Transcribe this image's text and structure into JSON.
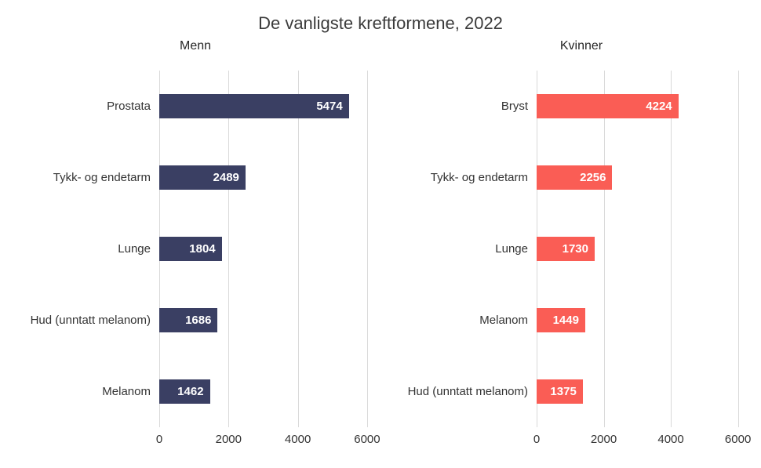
{
  "title": "De vanligste kreftformene, 2022",
  "colors": {
    "menn_bar": "#3a3f63",
    "kvinner_bar": "#fa5d55",
    "gridline": "#d9d9d9",
    "title_text": "#3b3b3b",
    "label_text": "#333333",
    "value_text": "#ffffff",
    "background": "#ffffff"
  },
  "chart_data": {
    "type": "bar",
    "orientation": "horizontal",
    "title": "De vanligste kreftformene, 2022",
    "xlim": [
      0,
      6500
    ],
    "x_ticks": [
      0,
      2000,
      4000,
      6000
    ],
    "grid": true,
    "legend": "none",
    "value_labels": "inside-end",
    "panels": [
      {
        "name": "Menn",
        "bar_color": "#3a3f63",
        "categories": [
          "Prostata",
          "Tykk- og endetarm",
          "Lunge",
          "Hud (unntatt melanom)",
          "Melanom"
        ],
        "values": [
          5474,
          2489,
          1804,
          1686,
          1462
        ]
      },
      {
        "name": "Kvinner",
        "bar_color": "#fa5d55",
        "categories": [
          "Bryst",
          "Tykk- og endetarm",
          "Lunge",
          "Melanom",
          "Hud (unntatt melanom)"
        ],
        "values": [
          4224,
          2256,
          1730,
          1449,
          1375
        ]
      }
    ]
  }
}
